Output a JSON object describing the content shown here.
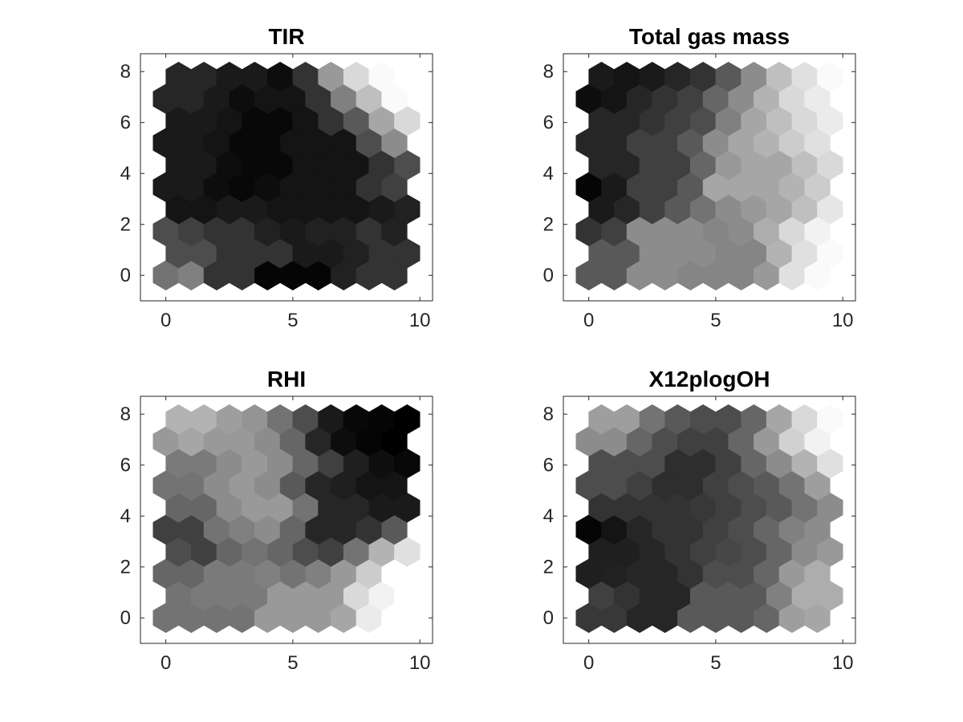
{
  "figure": {
    "background": "#ffffff"
  },
  "chart_data": [
    {
      "type": "heatmap",
      "grid": "hexagonal",
      "title": "TIR",
      "xlim": [
        -1,
        10.5
      ],
      "ylim": [
        -1,
        8.7
      ],
      "xticks": [
        0,
        5,
        10
      ],
      "yticks": [
        0,
        2,
        4,
        6,
        8
      ],
      "rows": 10,
      "cols": 10,
      "values_note_scale": "0=black, 1=white",
      "values": [
        [
          0.45,
          0.5,
          0.2,
          0.2,
          0.02,
          0.02,
          0.02,
          0.13,
          0.2,
          0.2
        ],
        [
          0.3,
          0.3,
          0.2,
          0.2,
          0.2,
          0.1,
          0.1,
          0.13,
          0.2,
          0.2
        ],
        [
          0.3,
          0.25,
          0.2,
          0.2,
          0.13,
          0.1,
          0.13,
          0.13,
          0.2,
          0.13
        ],
        [
          0.08,
          0.08,
          0.1,
          0.1,
          0.08,
          0.08,
          0.08,
          0.08,
          0.1,
          0.13
        ],
        [
          0.1,
          0.1,
          0.05,
          0.03,
          0.05,
          0.08,
          0.08,
          0.08,
          0.2,
          0.25
        ],
        [
          0.1,
          0.1,
          0.05,
          0.03,
          0.03,
          0.08,
          0.08,
          0.08,
          0.2,
          0.3
        ],
        [
          0.1,
          0.1,
          0.08,
          0.03,
          0.03,
          0.08,
          0.08,
          0.08,
          0.3,
          0.55
        ],
        [
          0.1,
          0.1,
          0.08,
          0.03,
          0.03,
          0.08,
          0.2,
          0.35,
          0.65,
          0.85
        ],
        [
          0.15,
          0.15,
          0.1,
          0.05,
          0.08,
          0.08,
          0.2,
          0.5,
          0.75,
          0.98
        ],
        [
          0.15,
          0.15,
          0.1,
          0.1,
          0.05,
          0.2,
          0.6,
          0.85,
          0.98,
          1.0
        ]
      ]
    },
    {
      "type": "heatmap",
      "grid": "hexagonal",
      "title": "Total gas mass",
      "xlim": [
        -1,
        10.5
      ],
      "ylim": [
        -1,
        8.7
      ],
      "xticks": [
        0,
        5,
        10
      ],
      "yticks": [
        0,
        2,
        4,
        6,
        8
      ],
      "rows": 10,
      "cols": 10,
      "values": [
        [
          0.35,
          0.35,
          0.55,
          0.55,
          0.52,
          0.52,
          0.52,
          0.6,
          0.88,
          0.98
        ],
        [
          0.35,
          0.35,
          0.55,
          0.55,
          0.55,
          0.52,
          0.52,
          0.7,
          0.88,
          0.98
        ],
        [
          0.2,
          0.25,
          0.55,
          0.55,
          0.55,
          0.52,
          0.55,
          0.68,
          0.85,
          0.95
        ],
        [
          0.1,
          0.15,
          0.25,
          0.35,
          0.45,
          0.55,
          0.6,
          0.65,
          0.75,
          0.9
        ],
        [
          0.02,
          0.1,
          0.25,
          0.25,
          0.35,
          0.65,
          0.65,
          0.65,
          0.7,
          0.8
        ],
        [
          0.15,
          0.15,
          0.25,
          0.25,
          0.4,
          0.6,
          0.65,
          0.65,
          0.75,
          0.85
        ],
        [
          0.15,
          0.15,
          0.25,
          0.25,
          0.35,
          0.55,
          0.65,
          0.7,
          0.8,
          0.88
        ],
        [
          0.15,
          0.15,
          0.2,
          0.25,
          0.3,
          0.5,
          0.65,
          0.75,
          0.85,
          0.92
        ],
        [
          0.05,
          0.08,
          0.15,
          0.2,
          0.25,
          0.4,
          0.55,
          0.7,
          0.85,
          0.92
        ],
        [
          0.1,
          0.08,
          0.1,
          0.15,
          0.2,
          0.35,
          0.55,
          0.75,
          0.88,
          0.98
        ]
      ]
    },
    {
      "type": "heatmap",
      "grid": "hexagonal",
      "title": "RHI",
      "xlim": [
        -1,
        10.5
      ],
      "ylim": [
        -1,
        8.7
      ],
      "xticks": [
        0,
        5,
        10
      ],
      "yticks": [
        0,
        2,
        4,
        6,
        8
      ],
      "rows": 10,
      "cols": 10,
      "values": [
        [
          0.45,
          0.45,
          0.45,
          0.45,
          0.6,
          0.6,
          0.6,
          0.65,
          0.92,
          1.0
        ],
        [
          0.45,
          0.48,
          0.48,
          0.48,
          0.6,
          0.6,
          0.6,
          0.85,
          0.95,
          1.0
        ],
        [
          0.4,
          0.4,
          0.48,
          0.48,
          0.5,
          0.45,
          0.5,
          0.6,
          0.8,
          1.0
        ],
        [
          0.3,
          0.25,
          0.4,
          0.45,
          0.4,
          0.3,
          0.25,
          0.45,
          0.7,
          0.88
        ],
        [
          0.25,
          0.25,
          0.45,
          0.5,
          0.55,
          0.4,
          0.15,
          0.15,
          0.2,
          0.35
        ],
        [
          0.4,
          0.4,
          0.55,
          0.6,
          0.6,
          0.45,
          0.15,
          0.15,
          0.1,
          0.1
        ],
        [
          0.45,
          0.45,
          0.55,
          0.6,
          0.55,
          0.35,
          0.15,
          0.12,
          0.08,
          0.08
        ],
        [
          0.48,
          0.48,
          0.55,
          0.6,
          0.55,
          0.4,
          0.25,
          0.12,
          0.06,
          0.03
        ],
        [
          0.6,
          0.65,
          0.6,
          0.6,
          0.55,
          0.4,
          0.15,
          0.05,
          0.02,
          0.0
        ],
        [
          0.7,
          0.7,
          0.62,
          0.58,
          0.45,
          0.3,
          0.1,
          0.03,
          0.02,
          0.0
        ]
      ]
    },
    {
      "type": "heatmap",
      "grid": "hexagonal",
      "title": "X12plogOH",
      "xlim": [
        -1,
        10.5
      ],
      "ylim": [
        -1,
        8.7
      ],
      "xticks": [
        0,
        5,
        10
      ],
      "yticks": [
        0,
        2,
        4,
        6,
        8
      ],
      "rows": 10,
      "cols": 10,
      "values": [
        [
          0.22,
          0.22,
          0.15,
          0.15,
          0.35,
          0.35,
          0.35,
          0.4,
          0.62,
          0.65
        ],
        [
          0.25,
          0.2,
          0.15,
          0.15,
          0.35,
          0.35,
          0.35,
          0.5,
          0.68,
          0.68
        ],
        [
          0.12,
          0.13,
          0.15,
          0.15,
          0.2,
          0.3,
          0.3,
          0.4,
          0.6,
          0.68
        ],
        [
          0.12,
          0.12,
          0.15,
          0.2,
          0.25,
          0.28,
          0.3,
          0.4,
          0.55,
          0.6
        ],
        [
          0.02,
          0.08,
          0.15,
          0.2,
          0.2,
          0.25,
          0.3,
          0.4,
          0.5,
          0.55
        ],
        [
          0.2,
          0.2,
          0.2,
          0.2,
          0.22,
          0.25,
          0.3,
          0.35,
          0.45,
          0.55
        ],
        [
          0.3,
          0.3,
          0.25,
          0.18,
          0.18,
          0.25,
          0.3,
          0.35,
          0.45,
          0.62
        ],
        [
          0.3,
          0.3,
          0.3,
          0.18,
          0.18,
          0.25,
          0.4,
          0.55,
          0.7,
          0.88
        ],
        [
          0.55,
          0.55,
          0.4,
          0.3,
          0.25,
          0.25,
          0.4,
          0.6,
          0.82,
          0.95
        ],
        [
          0.62,
          0.62,
          0.45,
          0.35,
          0.3,
          0.3,
          0.4,
          0.65,
          0.85,
          0.98
        ]
      ]
    }
  ]
}
